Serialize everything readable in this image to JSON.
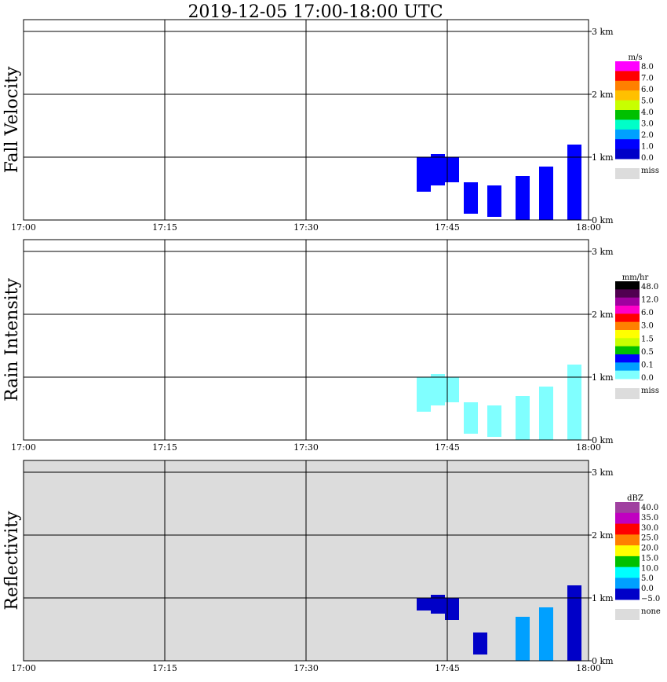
{
  "title": "2019-12-05   17:00-18:00 UTC",
  "colors": {
    "missing": "#dcdcdc",
    "axis": "#000000"
  },
  "chart_data": [
    {
      "type": "heatmap",
      "panel": "fall-velocity",
      "ylabel": "Fall Velocity",
      "background": "white",
      "x_ticks": [
        "17:00",
        "17:15",
        "17:30",
        "17:45",
        "18:00"
      ],
      "y_ticks": [
        "0 km",
        "1 km",
        "2 km",
        "3 km"
      ],
      "xlim": [
        "17:00",
        "18:00"
      ],
      "ylim_km": [
        0,
        3
      ],
      "grid": true,
      "colorbar": {
        "unit": "m/s",
        "labels": [
          "8.0",
          "7.0",
          "6.0",
          "5.0",
          "4.0",
          "3.0",
          "2.0",
          "1.0",
          "0.0"
        ],
        "colors": [
          "#ff00ff",
          "#ff0000",
          "#ff8000",
          "#ffc000",
          "#c8ff00",
          "#00c000",
          "#00ffc8",
          "#00a0ff",
          "#0000ff",
          "#0000c8"
        ],
        "missing_label": "miss"
      },
      "echo": [
        {
          "t_min": 42.5,
          "top_km": 1.0,
          "bottom_km": 0.45,
          "color": "#0000ff"
        },
        {
          "t_min": 44.0,
          "top_km": 1.05,
          "bottom_km": 0.55,
          "color": "#0000ff"
        },
        {
          "t_min": 45.5,
          "top_km": 1.0,
          "bottom_km": 0.6,
          "color": "#0000ff"
        },
        {
          "t_min": 47.5,
          "top_km": 0.6,
          "bottom_km": 0.1,
          "color": "#0000ff"
        },
        {
          "t_min": 50.0,
          "top_km": 0.55,
          "bottom_km": 0.05,
          "color": "#0000ff"
        },
        {
          "t_min": 53.0,
          "top_km": 0.7,
          "bottom_km": 0.0,
          "color": "#0000ff"
        },
        {
          "t_min": 55.5,
          "top_km": 0.85,
          "bottom_km": 0.0,
          "color": "#0000ff"
        },
        {
          "t_min": 58.5,
          "top_km": 1.2,
          "bottom_km": 0.0,
          "color": "#0000ff"
        }
      ]
    },
    {
      "type": "heatmap",
      "panel": "rain-intensity",
      "ylabel": "Rain Intensity",
      "background": "white",
      "x_ticks": [
        "17:00",
        "17:15",
        "17:30",
        "17:45",
        "18:00"
      ],
      "y_ticks": [
        "0 km",
        "1 km",
        "2 km",
        "3 km"
      ],
      "xlim": [
        "17:00",
        "18:00"
      ],
      "ylim_km": [
        0,
        3
      ],
      "grid": true,
      "colorbar": {
        "unit": "mm/hr",
        "labels": [
          "48.0",
          "12.0",
          "6.0",
          "3.0",
          "1.5",
          "0.5",
          "0.1",
          "0.0"
        ],
        "colors": [
          "#000000",
          "#500050",
          "#a000a0",
          "#ff00c8",
          "#ff0000",
          "#ff8000",
          "#ffff00",
          "#c8ff00",
          "#00c000",
          "#0000ff",
          "#00a0ff",
          "#80ffff"
        ],
        "missing_label": "miss"
      },
      "echo": [
        {
          "t_min": 42.5,
          "top_km": 1.0,
          "bottom_km": 0.45,
          "color": "#80ffff"
        },
        {
          "t_min": 44.0,
          "top_km": 1.05,
          "bottom_km": 0.55,
          "color": "#80ffff"
        },
        {
          "t_min": 45.5,
          "top_km": 1.0,
          "bottom_km": 0.6,
          "color": "#80ffff"
        },
        {
          "t_min": 47.5,
          "top_km": 0.6,
          "bottom_km": 0.1,
          "color": "#80ffff"
        },
        {
          "t_min": 50.0,
          "top_km": 0.55,
          "bottom_km": 0.05,
          "color": "#80ffff"
        },
        {
          "t_min": 53.0,
          "top_km": 0.7,
          "bottom_km": 0.0,
          "color": "#80ffff"
        },
        {
          "t_min": 55.5,
          "top_km": 0.85,
          "bottom_km": 0.0,
          "color": "#80ffff"
        },
        {
          "t_min": 58.5,
          "top_km": 1.2,
          "bottom_km": 0.0,
          "color": "#80ffff"
        }
      ]
    },
    {
      "type": "heatmap",
      "panel": "reflectivity",
      "ylabel": "Reflectivity",
      "background": "missing",
      "x_ticks": [
        "17:00",
        "17:15",
        "17:30",
        "17:45",
        "18:00"
      ],
      "y_ticks": [
        "0 km",
        "1 km",
        "2 km",
        "3 km"
      ],
      "xlim": [
        "17:00",
        "18:00"
      ],
      "ylim_km": [
        0,
        3
      ],
      "grid": true,
      "colorbar": {
        "unit": "dBZ",
        "labels": [
          "40.0",
          "35.0",
          "30.0",
          "25.0",
          "20.0",
          "15.0",
          "10.0",
          "5.0",
          "0.0",
          "−5.0"
        ],
        "colors": [
          "#a040a0",
          "#c000c0",
          "#ff0000",
          "#ff8000",
          "#ffff00",
          "#00c000",
          "#00ffff",
          "#00a0ff",
          "#0000c8"
        ],
        "missing_label": "none"
      },
      "echo": [
        {
          "t_min": 42.5,
          "top_km": 1.0,
          "bottom_km": 0.8,
          "color": "#0000c8"
        },
        {
          "t_min": 44.0,
          "top_km": 1.05,
          "bottom_km": 0.75,
          "color": "#0000c8"
        },
        {
          "t_min": 45.5,
          "top_km": 1.0,
          "bottom_km": 0.65,
          "color": "#0000c8"
        },
        {
          "t_min": 48.5,
          "top_km": 0.45,
          "bottom_km": 0.1,
          "color": "#0000c8"
        },
        {
          "t_min": 53.0,
          "top_km": 0.7,
          "bottom_km": 0.0,
          "color": "#00a0ff"
        },
        {
          "t_min": 55.5,
          "top_km": 0.85,
          "bottom_km": 0.0,
          "color": "#00a0ff"
        },
        {
          "t_min": 58.5,
          "top_km": 1.2,
          "bottom_km": 0.0,
          "color": "#0000c8"
        }
      ]
    }
  ]
}
